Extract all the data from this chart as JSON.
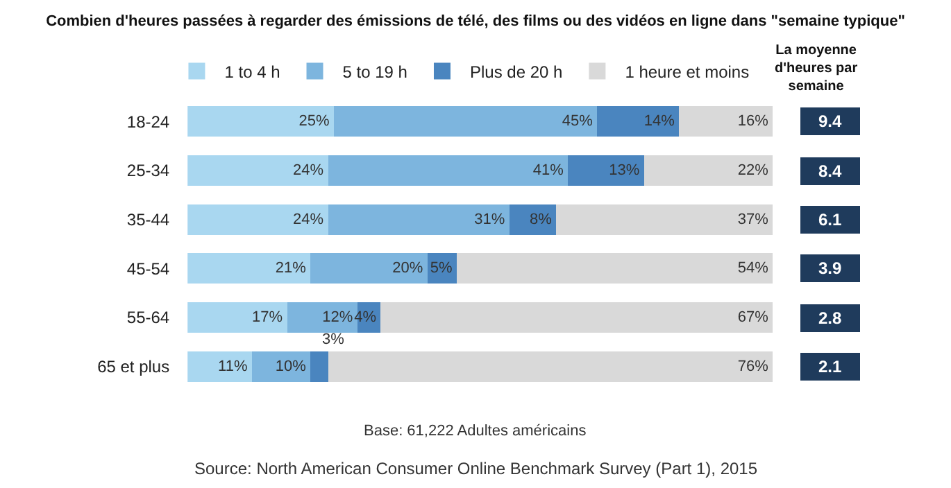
{
  "chart_data": [
    {
      "type": "bar",
      "orientation": "horizontal",
      "stacked": true,
      "title": "Combien d'heures passées à regarder des émissions de télé, des films ou des vidéos en ligne dans \"semaine typique\"",
      "categories": [
        "18-24",
        "25-34",
        "35-44",
        "45-54",
        "55-64",
        "65 et plus"
      ],
      "series": [
        {
          "name": "1 to 4 h",
          "color": "#a9d7f0",
          "values": [
            25,
            24,
            24,
            21,
            17,
            11
          ],
          "value_labels": [
            "25%",
            "24%",
            "24%",
            "21%",
            "17%",
            "11%"
          ]
        },
        {
          "name": "5 to 19 h",
          "color": "#7db5de",
          "values": [
            45,
            41,
            31,
            20,
            12,
            10
          ],
          "value_labels": [
            "45%",
            "41%",
            "31%",
            "20%",
            "12%",
            "10%"
          ]
        },
        {
          "name": "Plus de 20 h",
          "color": "#4a85bf",
          "values": [
            14,
            13,
            8,
            5,
            4,
            3
          ],
          "value_labels": [
            "14%",
            "13%",
            "8%",
            "5%",
            "4%",
            "3%"
          ]
        },
        {
          "name": "1 heure et moins",
          "color": "#d9d9d9",
          "values": [
            16,
            22,
            37,
            54,
            67,
            76
          ],
          "value_labels": [
            "16%",
            "22%",
            "37%",
            "54%",
            "67%",
            "76%"
          ]
        }
      ],
      "xlim": [
        0,
        100
      ],
      "tick_labels": "y",
      "legend": "top",
      "annotations": [
        "Base: 61,222 Adultes américains",
        "Source: North American Consumer Online Benchmark Survey (Part 1), 2015"
      ]
    },
    {
      "type": "other",
      "title": "La moyenne d'heures par semaine",
      "data_labels": true,
      "values": [
        9.4,
        8.4,
        6.1,
        3.9,
        2.8,
        2.1
      ],
      "color": "#1f3b5c"
    }
  ]
}
